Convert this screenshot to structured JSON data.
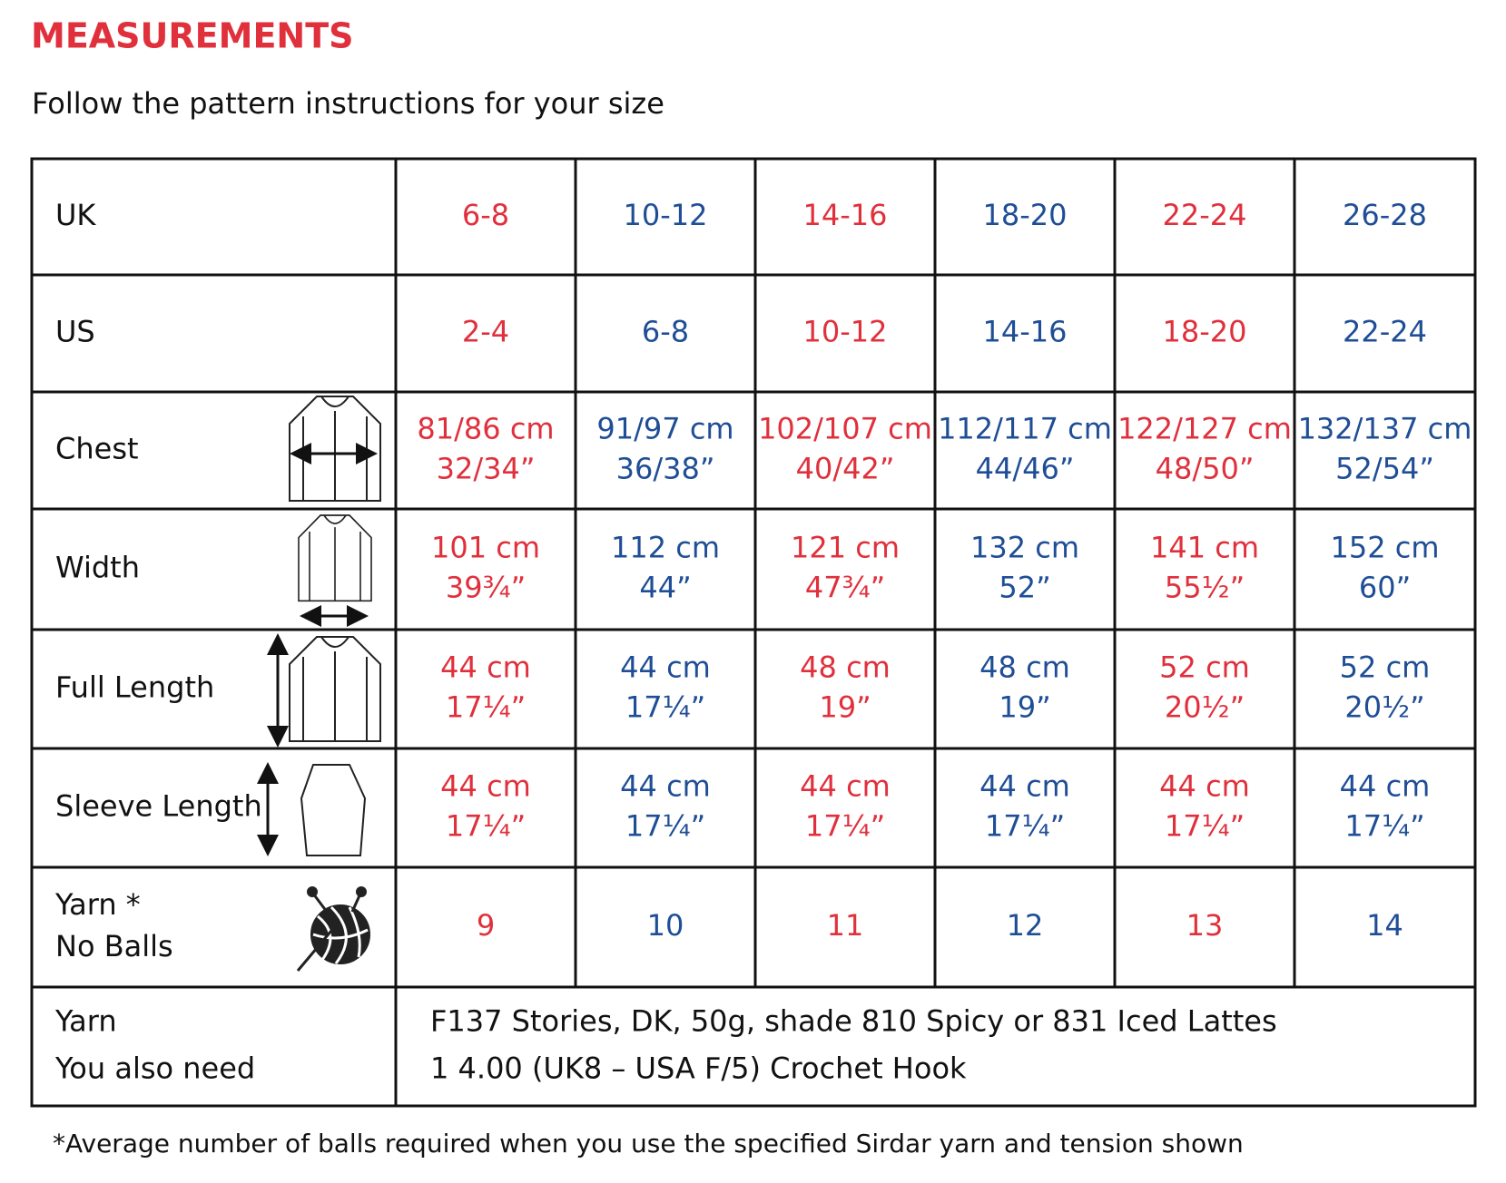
{
  "header": {
    "title": "MEASUREMENTS",
    "subtitle": "Follow the pattern instructions for your size"
  },
  "table": {
    "rows": [
      {
        "label": [
          "UK"
        ],
        "cells": [
          [
            "6-8"
          ],
          [
            "10-12"
          ],
          [
            "14-16"
          ],
          [
            "18-20"
          ],
          [
            "22-24"
          ],
          [
            "26-28"
          ]
        ]
      },
      {
        "label": [
          "US"
        ],
        "cells": [
          [
            "2-4"
          ],
          [
            "6-8"
          ],
          [
            "10-12"
          ],
          [
            "14-16"
          ],
          [
            "18-20"
          ],
          [
            "22-24"
          ]
        ]
      },
      {
        "label": [
          "Chest"
        ],
        "cells": [
          [
            "81/86 cm",
            "32/34”"
          ],
          [
            "91/97 cm",
            "36/38”"
          ],
          [
            "102/107 cm",
            "40/42”"
          ],
          [
            "112/117 cm",
            "44/46”"
          ],
          [
            "122/127 cm",
            "48/50”"
          ],
          [
            "132/137 cm",
            "52/54”"
          ]
        ]
      },
      {
        "label": [
          "Width"
        ],
        "cells": [
          [
            "101 cm",
            "39¾”"
          ],
          [
            "112 cm",
            "44”"
          ],
          [
            "121 cm",
            "47¾”"
          ],
          [
            "132 cm",
            "52”"
          ],
          [
            "141 cm",
            "55½”"
          ],
          [
            "152 cm",
            "60”"
          ]
        ]
      },
      {
        "label": [
          "Full Length"
        ],
        "cells": [
          [
            "44 cm",
            "17¼”"
          ],
          [
            "44 cm",
            "17¼”"
          ],
          [
            "48 cm",
            "19”"
          ],
          [
            "48 cm",
            "19”"
          ],
          [
            "52 cm",
            "20½”"
          ],
          [
            "52 cm",
            "20½”"
          ]
        ]
      },
      {
        "label": [
          "Sleeve Length"
        ],
        "cells": [
          [
            "44 cm",
            "17¼”"
          ],
          [
            "44 cm",
            "17¼”"
          ],
          [
            "44 cm",
            "17¼”"
          ],
          [
            "44 cm",
            "17¼”"
          ],
          [
            "44 cm",
            "17¼”"
          ],
          [
            "44 cm",
            "17¼”"
          ]
        ]
      },
      {
        "label": [
          "Yarn *",
          "No Balls"
        ],
        "cells": [
          [
            "9"
          ],
          [
            "10"
          ],
          [
            "11"
          ],
          [
            "12"
          ],
          [
            "13"
          ],
          [
            "14"
          ]
        ]
      }
    ],
    "yarn": {
      "labels": [
        "Yarn",
        "You also need"
      ],
      "lines": [
        "F137 Stories, DK, 50g, shade 810 Spicy or 831 Iced Lattes",
        "1 4.00 (UK8 – USA F/5) Crochet Hook"
      ]
    }
  },
  "footnote": "*Average number of balls required when you use the specified Sirdar yarn and tension shown"
}
